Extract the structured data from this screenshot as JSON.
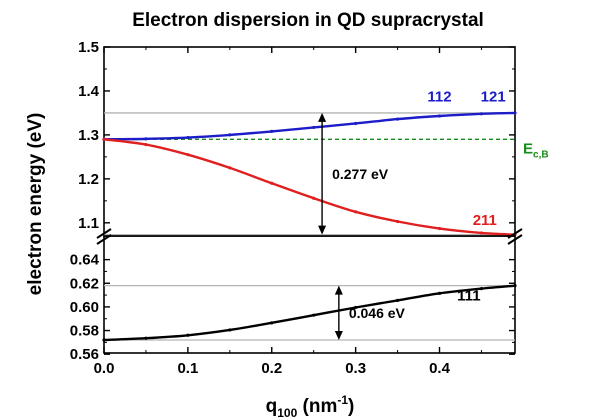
{
  "chart_data": {
    "type": "line",
    "title": "Electron dispersion in QD supracrystal",
    "xlabel_main": "q",
    "xlabel_sub": "100",
    "xlabel_unit_pre": " (nm",
    "xlabel_sup": "-1",
    "xlabel_unit_post": ")",
    "ylabel": "electron energy (eV)",
    "xlim": [
      0.0,
      0.49
    ],
    "xticks": [
      "0.0",
      "0.1",
      "0.2",
      "0.3",
      "0.4"
    ],
    "xtick_values": [
      0.0,
      0.1,
      0.2,
      0.3,
      0.4
    ],
    "panels": [
      {
        "name": "upper",
        "ylim": [
          1.07,
          1.5
        ],
        "yticks": [
          "1.1",
          "1.2",
          "1.3",
          "1.4",
          "1.5"
        ],
        "ytick_values": [
          1.1,
          1.2,
          1.3,
          1.4,
          1.5
        ]
      },
      {
        "name": "lower",
        "ylim": [
          0.561,
          0.66
        ],
        "yticks": [
          "0.56",
          "0.58",
          "0.60",
          "0.62",
          "0.64"
        ],
        "ytick_values": [
          0.56,
          0.58,
          0.6,
          0.62,
          0.64
        ]
      }
    ],
    "series": [
      {
        "name": "112, 121",
        "color": "#1c1cc8",
        "panel": "upper",
        "x": [
          0.0,
          0.05,
          0.1,
          0.15,
          0.2,
          0.25,
          0.3,
          0.35,
          0.4,
          0.45,
          0.49
        ],
        "y": [
          1.29,
          1.291,
          1.294,
          1.3,
          1.308,
          1.317,
          1.326,
          1.336,
          1.343,
          1.348,
          1.35
        ]
      },
      {
        "name": "211",
        "color": "#e02020",
        "panel": "upper",
        "x": [
          0.0,
          0.05,
          0.1,
          0.15,
          0.2,
          0.25,
          0.3,
          0.35,
          0.4,
          0.45,
          0.49
        ],
        "y": [
          1.29,
          1.278,
          1.255,
          1.225,
          1.19,
          1.156,
          1.125,
          1.103,
          1.087,
          1.077,
          1.073
        ]
      },
      {
        "name": "111",
        "color": "#000000",
        "panel": "lower",
        "x": [
          0.0,
          0.05,
          0.1,
          0.15,
          0.2,
          0.25,
          0.3,
          0.35,
          0.4,
          0.45,
          0.49
        ],
        "y": [
          0.572,
          0.5735,
          0.576,
          0.5805,
          0.5865,
          0.593,
          0.5995,
          0.6055,
          0.6115,
          0.6155,
          0.618
        ]
      }
    ],
    "reference_lines": [
      {
        "panel": "upper",
        "y": 1.35,
        "color": "#b4b4b4",
        "style": "solid"
      },
      {
        "panel": "upper",
        "y": 1.073,
        "color": "#b4b4b4",
        "style": "solid"
      },
      {
        "panel": "upper",
        "y": 1.29,
        "color": "#1a8a1a",
        "style": "dashed",
        "label_main": "E",
        "label_sub": "c,B"
      },
      {
        "panel": "lower",
        "y": 0.618,
        "color": "#b4b4b4",
        "style": "solid"
      },
      {
        "panel": "lower",
        "y": 0.572,
        "color": "#b4b4b4",
        "style": "solid"
      }
    ],
    "gap_arrows": [
      {
        "panel": "upper",
        "x": 0.26,
        "y1": 1.073,
        "y2": 1.35,
        "label": "0.277 eV"
      },
      {
        "panel": "lower",
        "x": 0.28,
        "y1": 0.572,
        "y2": 0.618,
        "label": "0.046 eV"
      }
    ],
    "annotations": [
      {
        "text": "112",
        "color": "#1c1cc8",
        "panel": "upper",
        "x": 0.4,
        "y": 1.376
      },
      {
        "text": "121",
        "color": "#1c1cc8",
        "panel": "upper",
        "x": 0.464,
        "y": 1.376
      },
      {
        "text": "211",
        "color": "#e02020",
        "panel": "upper",
        "x": 0.454,
        "y": 1.095
      },
      {
        "text": "111",
        "color": "#000000",
        "panel": "lower",
        "x": 0.435,
        "y": 0.6055
      }
    ],
    "grid": false,
    "legend": "none"
  }
}
